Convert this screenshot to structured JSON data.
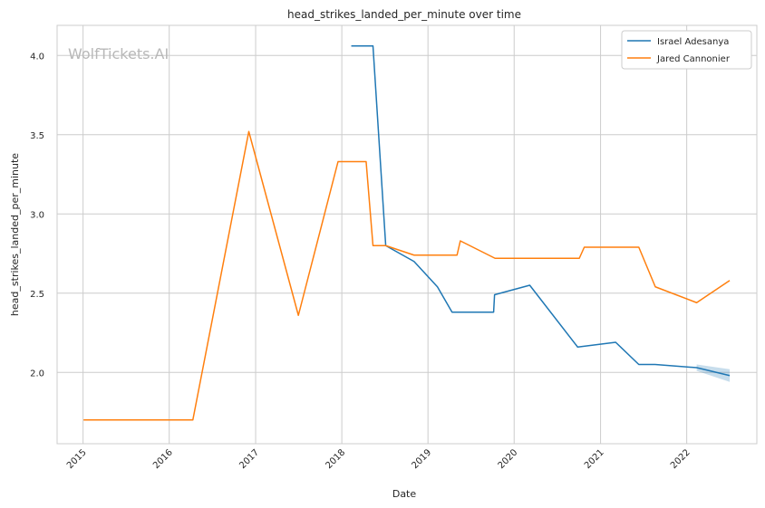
{
  "chart_data": {
    "type": "line",
    "title": "head_strikes_landed_per_minute over time",
    "xlabel": "Date",
    "ylabel": "head_strikes_landed_per_minute",
    "watermark": "WolfTickets.AI",
    "x_ticks": [
      "2015",
      "2016",
      "2017",
      "2018",
      "2019",
      "2020",
      "2021",
      "2022"
    ],
    "y_ticks": [
      "2.0",
      "2.5",
      "3.0",
      "3.5",
      "4.0"
    ],
    "xlim": [
      "2014-09-13",
      "2022-10-25"
    ],
    "ylim": [
      1.55,
      4.19
    ],
    "grid": true,
    "legend_position": "top-right",
    "colors": {
      "Israel Adesanya": "#1f77b4",
      "Jared Cannonier": "#ff7f0e"
    },
    "series": [
      {
        "name": "Israel Adesanya",
        "x": [
          "2018-02-10",
          "2018-05-13",
          "2018-07-06",
          "2018-11-03",
          "2019-02-10",
          "2019-04-13",
          "2019-10-06",
          "2019-10-10",
          "2020-03-07",
          "2020-09-26",
          "2021-03-06",
          "2021-06-12",
          "2021-08-20",
          "2022-02-12",
          "2022-07-02"
        ],
        "y": [
          4.06,
          4.06,
          2.8,
          2.7,
          2.54,
          2.38,
          2.38,
          2.49,
          2.55,
          2.16,
          2.19,
          2.05,
          2.05,
          2.03,
          1.98
        ],
        "band": {
          "x": [
            "2022-02-12",
            "2022-07-02"
          ],
          "lower": [
            2.01,
            1.94
          ],
          "upper": [
            2.05,
            2.02
          ]
        }
      },
      {
        "name": "Jared Cannonier",
        "x": [
          "2015-01-03",
          "2016-04-10",
          "2016-12-03",
          "2017-07-01",
          "2017-12-16",
          "2018-04-14",
          "2018-05-13",
          "2018-07-06",
          "2018-11-03",
          "2019-05-04",
          "2019-05-18",
          "2019-10-12",
          "2020-10-03",
          "2020-10-24",
          "2021-06-12",
          "2021-08-21",
          "2022-02-12",
          "2022-07-02"
        ],
        "y": [
          1.7,
          1.7,
          3.52,
          2.36,
          3.33,
          3.33,
          2.8,
          2.8,
          2.74,
          2.74,
          2.83,
          2.72,
          2.72,
          2.79,
          2.79,
          2.54,
          2.44,
          2.58
        ]
      }
    ]
  }
}
